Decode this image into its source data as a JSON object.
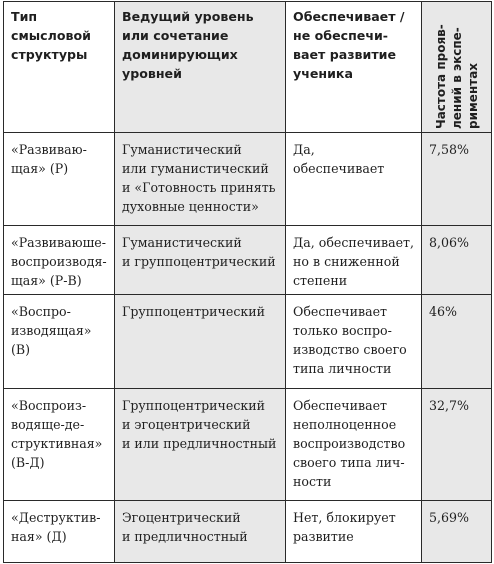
{
  "header": {
    "col1": "Тип\nсмысловой\nструктуры",
    "col2": "Ведущий уровень\nили сочетание\nдоминирующих\nуровней",
    "col3": "Обеспечивает /\nне обеспечи-\nвает развитие\nученика",
    "col4": "Частота прояв-\nлений в экспе-\nриментах"
  },
  "rows": [
    {
      "type": "«Развиваю-\nщая» (Р)",
      "level": "Гуманистический\nили гуманистический\nи «Готовность принять\nдуховные ценности»",
      "provides": "Да,\nобеспечивает",
      "freq": "7,58%"
    },
    {
      "type": "«Развиваюше-\nвоспроизводя-\nщая» (Р-В)",
      "level": "Гуманистический\nи группоцентрический",
      "provides": "Да, обеспечивает,\nно в сниженной\nстепени",
      "freq": "8,06%"
    },
    {
      "type": "«Воспро-\nизводящая»\n(В)",
      "level": "Группоцентрический",
      "provides": "Обеспечивает\nтолько воспро-\nизводство своего\nтипа личности",
      "freq": "46%"
    },
    {
      "type": "«Воспроиз-\nводяще-де-\nструктивная»\n(В-Д)",
      "level": "Группоцентрический\nи эгоцентрический\nи или предличностный",
      "provides": "Обеспечивает\nнеполноценное\nвоспроизводство\nсвоего типа лич-\nности",
      "freq": "32,7%"
    },
    {
      "type": "«Деструктив-\nная» (Д)",
      "level": "Эгоцентрический\nи предличностный",
      "provides": "Нет, блокирует\nразвитие",
      "freq": "5,69%"
    }
  ],
  "colors": {
    "shade": "#e8e8e8",
    "border": "#2a2a2a"
  }
}
